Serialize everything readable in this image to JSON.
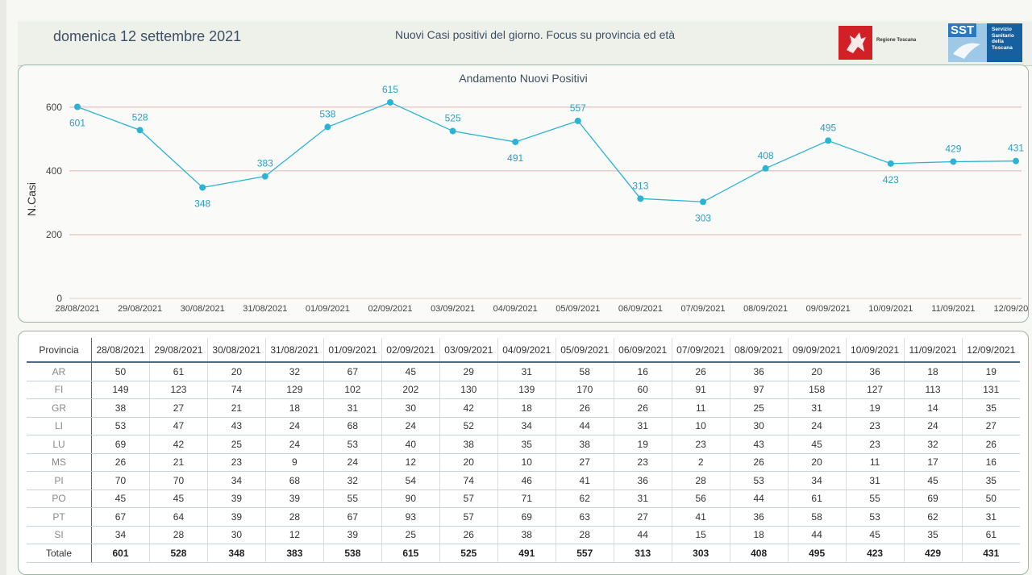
{
  "header": {
    "date": "domenica 12 settembre 2021",
    "title": "Nuovi Casi positivi del giorno. Focus su provincia ed età",
    "logo_toscana": "Regione Toscana",
    "logo_sst_badge": "SST",
    "logo_sst_text": "Servizio Sanitario della Toscana"
  },
  "colors": {
    "line": "#2ab3d3",
    "gridline": "#e3b5ad",
    "label": "#2a9ec3"
  },
  "chart_data": {
    "type": "line",
    "title": "Andamento Nuovi Positivi",
    "xlabel": "",
    "ylabel": "N.Casi",
    "ylim": [
      0,
      620
    ],
    "yticks": [
      0,
      200,
      400,
      600
    ],
    "grid": true,
    "categories": [
      "28/08/2021",
      "29/08/2021",
      "30/08/2021",
      "31/08/2021",
      "01/09/2021",
      "02/09/2021",
      "03/09/2021",
      "04/09/2021",
      "05/09/2021",
      "06/09/2021",
      "07/09/2021",
      "08/09/2021",
      "09/09/2021",
      "10/09/2021",
      "11/09/2021",
      "12/09/2021"
    ],
    "series": [
      {
        "name": "Nuovi Positivi",
        "values": [
          601,
          528,
          348,
          383,
          538,
          615,
          525,
          491,
          557,
          313,
          303,
          408,
          495,
          423,
          429,
          431
        ]
      }
    ]
  },
  "table": {
    "corner": "Provincia",
    "dates": [
      "28/08/2021",
      "29/08/2021",
      "30/08/2021",
      "31/08/2021",
      "01/09/2021",
      "02/09/2021",
      "03/09/2021",
      "04/09/2021",
      "05/09/2021",
      "06/09/2021",
      "07/09/2021",
      "08/09/2021",
      "09/09/2021",
      "10/09/2021",
      "11/09/2021",
      "12/09/2021"
    ],
    "rows": [
      {
        "prov": "AR",
        "values": [
          50,
          61,
          20,
          32,
          67,
          45,
          29,
          31,
          58,
          16,
          26,
          36,
          20,
          36,
          18,
          19
        ]
      },
      {
        "prov": "FI",
        "values": [
          149,
          123,
          74,
          129,
          102,
          202,
          130,
          139,
          170,
          60,
          91,
          97,
          158,
          127,
          113,
          131
        ]
      },
      {
        "prov": "GR",
        "values": [
          38,
          27,
          21,
          18,
          31,
          30,
          42,
          18,
          26,
          26,
          11,
          25,
          31,
          19,
          14,
          35
        ]
      },
      {
        "prov": "LI",
        "values": [
          53,
          47,
          43,
          24,
          68,
          24,
          52,
          34,
          44,
          31,
          10,
          30,
          24,
          23,
          24,
          27
        ]
      },
      {
        "prov": "LU",
        "values": [
          69,
          42,
          25,
          24,
          53,
          40,
          38,
          35,
          38,
          19,
          23,
          43,
          45,
          23,
          32,
          26
        ]
      },
      {
        "prov": "MS",
        "values": [
          26,
          21,
          23,
          9,
          24,
          12,
          20,
          10,
          27,
          23,
          2,
          26,
          20,
          11,
          17,
          16
        ]
      },
      {
        "prov": "PI",
        "values": [
          70,
          70,
          34,
          68,
          32,
          54,
          74,
          46,
          41,
          36,
          28,
          53,
          34,
          31,
          45,
          35
        ]
      },
      {
        "prov": "PO",
        "values": [
          45,
          45,
          39,
          39,
          55,
          90,
          57,
          71,
          62,
          31,
          56,
          44,
          61,
          55,
          69,
          50
        ]
      },
      {
        "prov": "PT",
        "values": [
          67,
          64,
          39,
          28,
          67,
          93,
          57,
          69,
          63,
          27,
          41,
          36,
          58,
          53,
          62,
          31
        ]
      },
      {
        "prov": "SI",
        "values": [
          34,
          28,
          30,
          12,
          39,
          25,
          26,
          38,
          28,
          44,
          15,
          18,
          44,
          45,
          35,
          61
        ]
      }
    ],
    "total_label": "Totale",
    "totals": [
      601,
      528,
      348,
      383,
      538,
      615,
      525,
      491,
      557,
      313,
      303,
      408,
      495,
      423,
      429,
      431
    ]
  }
}
